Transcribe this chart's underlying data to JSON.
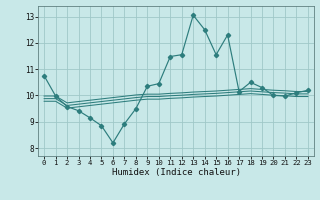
{
  "xlabel": "Humidex (Indice chaleur)",
  "bg_color": "#c8e8e8",
  "grid_color": "#a0c8c8",
  "line_color": "#2d7d7d",
  "xlim": [
    -0.5,
    23.5
  ],
  "ylim": [
    7.7,
    13.4
  ],
  "xticks": [
    0,
    1,
    2,
    3,
    4,
    5,
    6,
    7,
    8,
    9,
    10,
    11,
    12,
    13,
    14,
    15,
    16,
    17,
    18,
    19,
    20,
    21,
    22,
    23
  ],
  "yticks": [
    8,
    9,
    10,
    11,
    12,
    13
  ],
  "line1_x": [
    0,
    1,
    2,
    3,
    4,
    5,
    6,
    7,
    8,
    9,
    10,
    11,
    12,
    13,
    14,
    15,
    16,
    17,
    18,
    19,
    20,
    21,
    22,
    23
  ],
  "line1_y": [
    10.75,
    9.98,
    9.58,
    9.42,
    9.15,
    8.85,
    8.2,
    8.92,
    9.5,
    10.35,
    10.45,
    11.48,
    11.55,
    13.05,
    12.5,
    11.55,
    12.3,
    10.15,
    10.5,
    10.3,
    10.0,
    9.98,
    10.1,
    10.2
  ],
  "line2_x": [
    0,
    1,
    2,
    3,
    4,
    5,
    6,
    7,
    8,
    9,
    10,
    11,
    12,
    13,
    14,
    15,
    16,
    17,
    18,
    19,
    20,
    21,
    22,
    23
  ],
  "line2_y": [
    9.98,
    9.98,
    9.72,
    9.77,
    9.82,
    9.87,
    9.92,
    9.97,
    10.02,
    10.05,
    10.05,
    10.08,
    10.1,
    10.13,
    10.15,
    10.17,
    10.2,
    10.23,
    10.26,
    10.23,
    10.2,
    10.18,
    10.15,
    10.15
  ],
  "line3_x": [
    0,
    1,
    2,
    3,
    4,
    5,
    6,
    7,
    8,
    9,
    10,
    11,
    12,
    13,
    14,
    15,
    16,
    17,
    18,
    19,
    20,
    21,
    22,
    23
  ],
  "line3_y": [
    9.88,
    9.88,
    9.62,
    9.67,
    9.72,
    9.77,
    9.82,
    9.87,
    9.92,
    9.96,
    9.96,
    9.99,
    10.01,
    10.04,
    10.06,
    10.08,
    10.11,
    10.14,
    10.17,
    10.14,
    10.11,
    10.09,
    10.06,
    10.06
  ],
  "line4_x": [
    0,
    1,
    2,
    3,
    4,
    5,
    6,
    7,
    8,
    9,
    10,
    11,
    12,
    13,
    14,
    15,
    16,
    17,
    18,
    19,
    20,
    21,
    22,
    23
  ],
  "line4_y": [
    9.78,
    9.78,
    9.52,
    9.57,
    9.62,
    9.67,
    9.72,
    9.77,
    9.82,
    9.86,
    9.86,
    9.89,
    9.91,
    9.94,
    9.96,
    9.98,
    10.01,
    10.04,
    10.07,
    10.04,
    10.01,
    9.99,
    9.96,
    9.96
  ]
}
